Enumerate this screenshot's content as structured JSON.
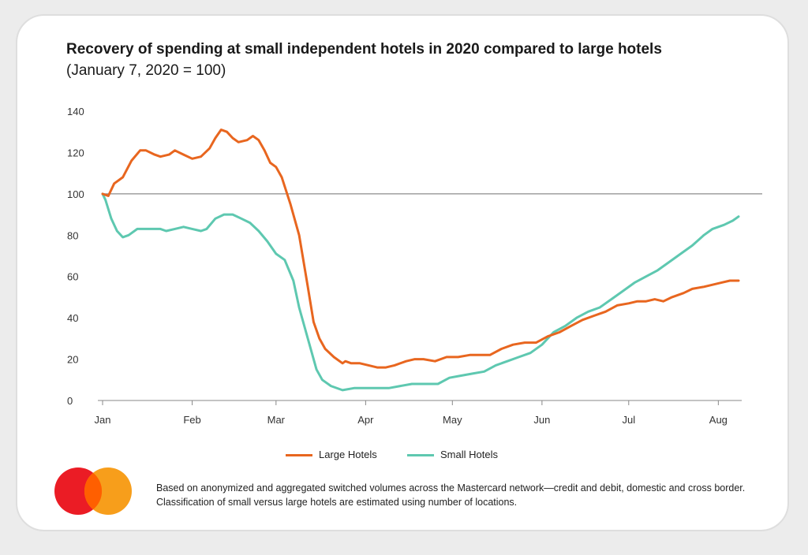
{
  "colors": {
    "large": "#e8661f",
    "small": "#5ec8b0",
    "axis": "#888888",
    "reference": "#8c8c8c",
    "logo_red": "#eb1c25",
    "logo_orange": "#f79e1b",
    "logo_overlap": "#ff5f00"
  },
  "logo": {
    "name": "mastercard-logo-icon"
  },
  "footnote": "Based on anonymized and aggregated switched volumes across the Mastercard network—credit and debit, domestic and cross border. Classification of small versus large hotels are estimated using number of locations.",
  "chart_data": {
    "type": "line",
    "title": "Recovery of spending at small independent hotels in 2020 compared to large hotels",
    "subtitle": "(January 7, 2020 = 100)",
    "xlabel": "",
    "ylabel": "",
    "ylim": [
      0,
      140
    ],
    "yticks": [
      0,
      20,
      40,
      60,
      80,
      100,
      120,
      140
    ],
    "xlim": [
      "2020-01-01",
      "2020-08-08"
    ],
    "xticks": [
      {
        "label": "Jan",
        "date": "2020-01-01"
      },
      {
        "label": "Feb",
        "date": "2020-02-01"
      },
      {
        "label": "Mar",
        "date": "2020-03-01"
      },
      {
        "label": "Apr",
        "date": "2020-04-01"
      },
      {
        "label": "May",
        "date": "2020-05-01"
      },
      {
        "label": "Jun",
        "date": "2020-06-01"
      },
      {
        "label": "Jul",
        "date": "2020-07-01"
      },
      {
        "label": "Aug",
        "date": "2020-08-01"
      }
    ],
    "reference_line": 100,
    "grid": false,
    "legend_position": "bottom-center",
    "series": [
      {
        "name": "Large Hotels",
        "color_key": "large",
        "points": [
          [
            "2020-01-01",
            100
          ],
          [
            "2020-01-03",
            99
          ],
          [
            "2020-01-05",
            105
          ],
          [
            "2020-01-08",
            108
          ],
          [
            "2020-01-11",
            116
          ],
          [
            "2020-01-14",
            121
          ],
          [
            "2020-01-16",
            121
          ],
          [
            "2020-01-19",
            119
          ],
          [
            "2020-01-21",
            118
          ],
          [
            "2020-01-24",
            119
          ],
          [
            "2020-01-26",
            121
          ],
          [
            "2020-01-29",
            119
          ],
          [
            "2020-02-01",
            117
          ],
          [
            "2020-02-04",
            118
          ],
          [
            "2020-02-07",
            122
          ],
          [
            "2020-02-09",
            127
          ],
          [
            "2020-02-11",
            131
          ],
          [
            "2020-02-13",
            130
          ],
          [
            "2020-02-15",
            127
          ],
          [
            "2020-02-17",
            125
          ],
          [
            "2020-02-20",
            126
          ],
          [
            "2020-02-22",
            128
          ],
          [
            "2020-02-24",
            126
          ],
          [
            "2020-02-26",
            121
          ],
          [
            "2020-02-28",
            115
          ],
          [
            "2020-03-01",
            113
          ],
          [
            "2020-03-03",
            108
          ],
          [
            "2020-03-06",
            95
          ],
          [
            "2020-03-09",
            80
          ],
          [
            "2020-03-12",
            55
          ],
          [
            "2020-03-14",
            38
          ],
          [
            "2020-03-16",
            30
          ],
          [
            "2020-03-18",
            25
          ],
          [
            "2020-03-21",
            21
          ],
          [
            "2020-03-24",
            18
          ],
          [
            "2020-03-25",
            19
          ],
          [
            "2020-03-27",
            18
          ],
          [
            "2020-03-30",
            18
          ],
          [
            "2020-04-02",
            17
          ],
          [
            "2020-04-05",
            16
          ],
          [
            "2020-04-08",
            16
          ],
          [
            "2020-04-11",
            17
          ],
          [
            "2020-04-15",
            19
          ],
          [
            "2020-04-18",
            20
          ],
          [
            "2020-04-21",
            20
          ],
          [
            "2020-04-25",
            19
          ],
          [
            "2020-04-29",
            21
          ],
          [
            "2020-05-03",
            21
          ],
          [
            "2020-05-07",
            22
          ],
          [
            "2020-05-11",
            22
          ],
          [
            "2020-05-14",
            22
          ],
          [
            "2020-05-18",
            25
          ],
          [
            "2020-05-22",
            27
          ],
          [
            "2020-05-26",
            28
          ],
          [
            "2020-05-30",
            28
          ],
          [
            "2020-06-03",
            31
          ],
          [
            "2020-06-07",
            33
          ],
          [
            "2020-06-11",
            36
          ],
          [
            "2020-06-15",
            39
          ],
          [
            "2020-06-19",
            41
          ],
          [
            "2020-06-23",
            43
          ],
          [
            "2020-06-27",
            46
          ],
          [
            "2020-07-01",
            47
          ],
          [
            "2020-07-04",
            48
          ],
          [
            "2020-07-07",
            48
          ],
          [
            "2020-07-10",
            49
          ],
          [
            "2020-07-13",
            48
          ],
          [
            "2020-07-16",
            50
          ],
          [
            "2020-07-20",
            52
          ],
          [
            "2020-07-23",
            54
          ],
          [
            "2020-07-27",
            55
          ],
          [
            "2020-07-30",
            56
          ],
          [
            "2020-08-02",
            57
          ],
          [
            "2020-08-05",
            58
          ],
          [
            "2020-08-08",
            58
          ]
        ]
      },
      {
        "name": "Small Hotels",
        "color_key": "small",
        "points": [
          [
            "2020-01-01",
            100
          ],
          [
            "2020-01-02",
            97
          ],
          [
            "2020-01-04",
            88
          ],
          [
            "2020-01-06",
            82
          ],
          [
            "2020-01-08",
            79
          ],
          [
            "2020-01-10",
            80
          ],
          [
            "2020-01-13",
            83
          ],
          [
            "2020-01-16",
            83
          ],
          [
            "2020-01-19",
            83
          ],
          [
            "2020-01-21",
            83
          ],
          [
            "2020-01-23",
            82
          ],
          [
            "2020-01-26",
            83
          ],
          [
            "2020-01-29",
            84
          ],
          [
            "2020-02-01",
            83
          ],
          [
            "2020-02-04",
            82
          ],
          [
            "2020-02-06",
            83
          ],
          [
            "2020-02-09",
            88
          ],
          [
            "2020-02-12",
            90
          ],
          [
            "2020-02-15",
            90
          ],
          [
            "2020-02-18",
            88
          ],
          [
            "2020-02-21",
            86
          ],
          [
            "2020-02-24",
            82
          ],
          [
            "2020-02-27",
            77
          ],
          [
            "2020-03-01",
            71
          ],
          [
            "2020-03-04",
            68
          ],
          [
            "2020-03-07",
            58
          ],
          [
            "2020-03-09",
            45
          ],
          [
            "2020-03-12",
            30
          ],
          [
            "2020-03-15",
            15
          ],
          [
            "2020-03-17",
            10
          ],
          [
            "2020-03-20",
            7
          ],
          [
            "2020-03-24",
            5
          ],
          [
            "2020-03-28",
            6
          ],
          [
            "2020-04-01",
            6
          ],
          [
            "2020-04-05",
            6
          ],
          [
            "2020-04-09",
            6
          ],
          [
            "2020-04-13",
            7
          ],
          [
            "2020-04-17",
            8
          ],
          [
            "2020-04-21",
            8
          ],
          [
            "2020-04-26",
            8
          ],
          [
            "2020-04-30",
            11
          ],
          [
            "2020-05-04",
            12
          ],
          [
            "2020-05-08",
            13
          ],
          [
            "2020-05-12",
            14
          ],
          [
            "2020-05-16",
            17
          ],
          [
            "2020-05-20",
            19
          ],
          [
            "2020-05-24",
            21
          ],
          [
            "2020-05-28",
            23
          ],
          [
            "2020-06-01",
            27
          ],
          [
            "2020-06-05",
            33
          ],
          [
            "2020-06-09",
            36
          ],
          [
            "2020-06-13",
            40
          ],
          [
            "2020-06-17",
            43
          ],
          [
            "2020-06-21",
            45
          ],
          [
            "2020-06-25",
            49
          ],
          [
            "2020-06-29",
            53
          ],
          [
            "2020-07-03",
            57
          ],
          [
            "2020-07-07",
            60
          ],
          [
            "2020-07-11",
            63
          ],
          [
            "2020-07-15",
            67
          ],
          [
            "2020-07-19",
            71
          ],
          [
            "2020-07-23",
            75
          ],
          [
            "2020-07-27",
            80
          ],
          [
            "2020-07-30",
            83
          ],
          [
            "2020-08-03",
            85
          ],
          [
            "2020-08-06",
            87
          ],
          [
            "2020-08-08",
            89
          ]
        ]
      }
    ]
  }
}
